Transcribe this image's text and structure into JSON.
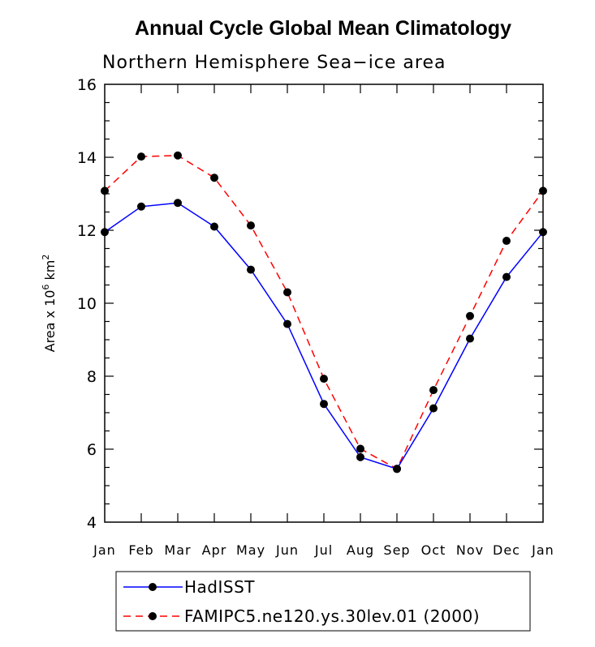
{
  "chart_data": {
    "type": "line",
    "title": "Annual Cycle Global Mean Climatology",
    "subtitle": "Northern Hemisphere Sea−ice area",
    "ylabel": "Area x 10",
    "ylabel_sup": "6",
    "ylabel_unit": " km",
    "ylabel_unit_sup": "2",
    "ylim": [
      4,
      16
    ],
    "yticks": [
      4,
      6,
      8,
      10,
      12,
      14,
      16
    ],
    "categories": [
      "Jan",
      "Feb",
      "Mar",
      "Apr",
      "May",
      "Jun",
      "Jul",
      "Aug",
      "Sep",
      "Oct",
      "Nov",
      "Dec",
      "Jan"
    ],
    "series": [
      {
        "name": "HadISST",
        "color": "#0000ff",
        "dash": "solid",
        "values": [
          11.95,
          12.65,
          12.75,
          12.1,
          10.92,
          9.43,
          7.24,
          5.78,
          5.46,
          7.12,
          9.03,
          10.72,
          11.95
        ]
      },
      {
        "name": "FAMIPC5.ne120.ys.30lev.01 (2000)",
        "color": "#ff0000",
        "dash": "dashed",
        "values": [
          13.08,
          14.02,
          14.05,
          13.44,
          12.13,
          10.3,
          7.93,
          6.01,
          5.46,
          7.62,
          9.65,
          11.71,
          13.08
        ]
      }
    ],
    "grid": false,
    "legend": "bottom"
  }
}
